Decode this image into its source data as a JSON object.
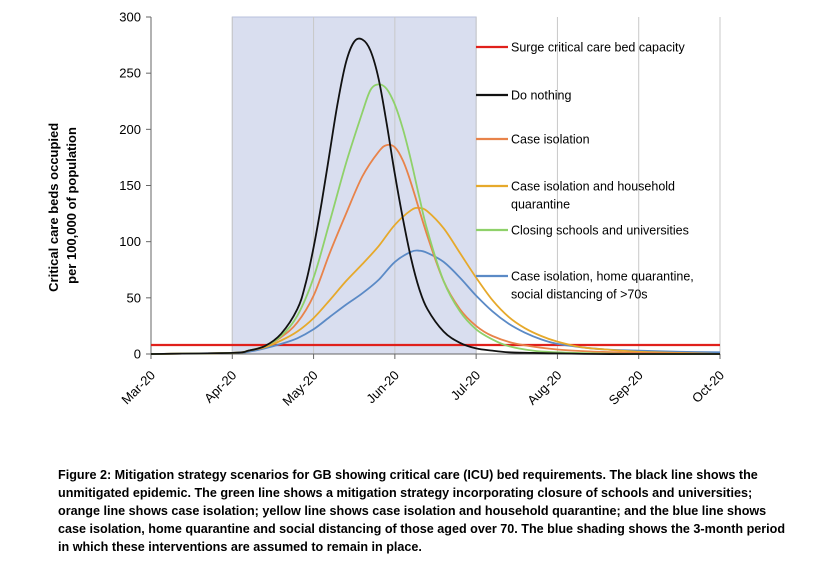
{
  "chart_data": {
    "type": "line",
    "title": "",
    "xlabel": "",
    "ylabel_lines": [
      "Critical care beds occupied",
      "per 100,000 of population"
    ],
    "x_categories": [
      "Mar-20",
      "Apr-20",
      "May-20",
      "Jun-20",
      "Jul-20",
      "Aug-20",
      "Sep-20",
      "Oct-20"
    ],
    "ylim": [
      0,
      300
    ],
    "yticks": [
      "0",
      "50",
      "100",
      "150",
      "200",
      "250",
      "300"
    ],
    "shaded_period": {
      "from": 1,
      "to": 4,
      "color": "#d9deef",
      "description": "3-month intervention period"
    },
    "grid": {
      "vertical": true,
      "horizontal": false
    },
    "legend_position": "right",
    "series": [
      {
        "name": "Surge critical care bed capacity",
        "color": "#e0201b",
        "x": [
          0,
          7
        ],
        "y": [
          8,
          8
        ]
      },
      {
        "name": "Do nothing",
        "color": "#111111",
        "x": [
          0,
          1,
          1.2,
          1.4,
          1.6,
          1.8,
          1.9,
          2,
          2.1,
          2.2,
          2.3,
          2.4,
          2.5,
          2.6,
          2.7,
          2.8,
          2.9,
          3,
          3.1,
          3.2,
          3.3,
          3.4,
          3.6,
          3.8,
          4,
          4.2,
          4.4,
          4.7,
          5,
          5.5,
          6,
          7
        ],
        "y": [
          0,
          1,
          3,
          7,
          18,
          40,
          62,
          95,
          135,
          180,
          225,
          260,
          278,
          280,
          270,
          245,
          205,
          160,
          120,
          85,
          58,
          40,
          20,
          10,
          5,
          3,
          1.5,
          1,
          0.5,
          0,
          0,
          0
        ]
      },
      {
        "name": "Case isolation",
        "color": "#e8834a",
        "x": [
          0,
          1,
          1.2,
          1.4,
          1.6,
          1.8,
          2,
          2.2,
          2.4,
          2.6,
          2.8,
          2.9,
          3,
          3.1,
          3.2,
          3.4,
          3.6,
          3.8,
          4,
          4.2,
          4.5,
          5,
          5.5,
          6,
          7
        ],
        "y": [
          0,
          1,
          3,
          7,
          15,
          28,
          52,
          90,
          125,
          158,
          180,
          186,
          184,
          172,
          152,
          105,
          65,
          40,
          25,
          16,
          9,
          4,
          2,
          1,
          0
        ]
      },
      {
        "name": "Case isolation and household quarantine",
        "color": "#e6a92b",
        "x": [
          0,
          1,
          1.2,
          1.4,
          1.6,
          1.8,
          2,
          2.2,
          2.4,
          2.6,
          2.8,
          3,
          3.2,
          3.3,
          3.4,
          3.6,
          3.8,
          4,
          4.2,
          4.4,
          4.6,
          4.8,
          5,
          5.3,
          5.6,
          6,
          6.5,
          7
        ],
        "y": [
          0,
          1,
          3,
          6,
          12,
          20,
          32,
          48,
          65,
          80,
          96,
          115,
          128,
          130,
          127,
          112,
          90,
          68,
          48,
          33,
          23,
          16,
          11,
          6,
          4,
          2,
          1,
          0
        ]
      },
      {
        "name": "Closing schools and universities",
        "color": "#8fd16a",
        "x": [
          0,
          1,
          1.2,
          1.4,
          1.6,
          1.8,
          2,
          2.2,
          2.4,
          2.6,
          2.7,
          2.8,
          2.9,
          3,
          3.1,
          3.2,
          3.3,
          3.4,
          3.6,
          3.8,
          4,
          4.2,
          4.4,
          4.7,
          5,
          5.5,
          6,
          7
        ],
        "y": [
          0,
          1,
          3,
          7,
          16,
          34,
          68,
          118,
          170,
          215,
          235,
          240,
          236,
          222,
          200,
          172,
          140,
          110,
          65,
          38,
          22,
          13,
          7,
          3,
          1.5,
          0.5,
          0,
          0
        ]
      },
      {
        "name": "Case isolation, home quarantine, social distancing of >70s",
        "color": "#5b8ac6",
        "x": [
          0,
          1,
          1.2,
          1.4,
          1.6,
          1.8,
          2,
          2.2,
          2.4,
          2.6,
          2.8,
          3,
          3.2,
          3.3,
          3.4,
          3.6,
          3.8,
          4,
          4.2,
          4.4,
          4.6,
          4.8,
          5,
          5.3,
          5.6,
          6,
          6.5,
          7
        ],
        "y": [
          0,
          1,
          2,
          5,
          9,
          14,
          22,
          33,
          44,
          54,
          66,
          82,
          91,
          92,
          90,
          82,
          68,
          52,
          38,
          27,
          19,
          13,
          9,
          6,
          4,
          3,
          2,
          1.5
        ]
      }
    ]
  },
  "caption": "Figure 2: Mitigation strategy scenarios for GB showing critical care (ICU) bed requirements. The black line shows the unmitigated epidemic. The green line shows a mitigation strategy incorporating closure of schools and universities; orange line shows case isolation; yellow line shows case isolation and household quarantine; and the blue line shows case isolation, home quarantine and social distancing of those aged over 70. The blue shading shows the 3-month period in which these interventions are assumed to remain in place."
}
